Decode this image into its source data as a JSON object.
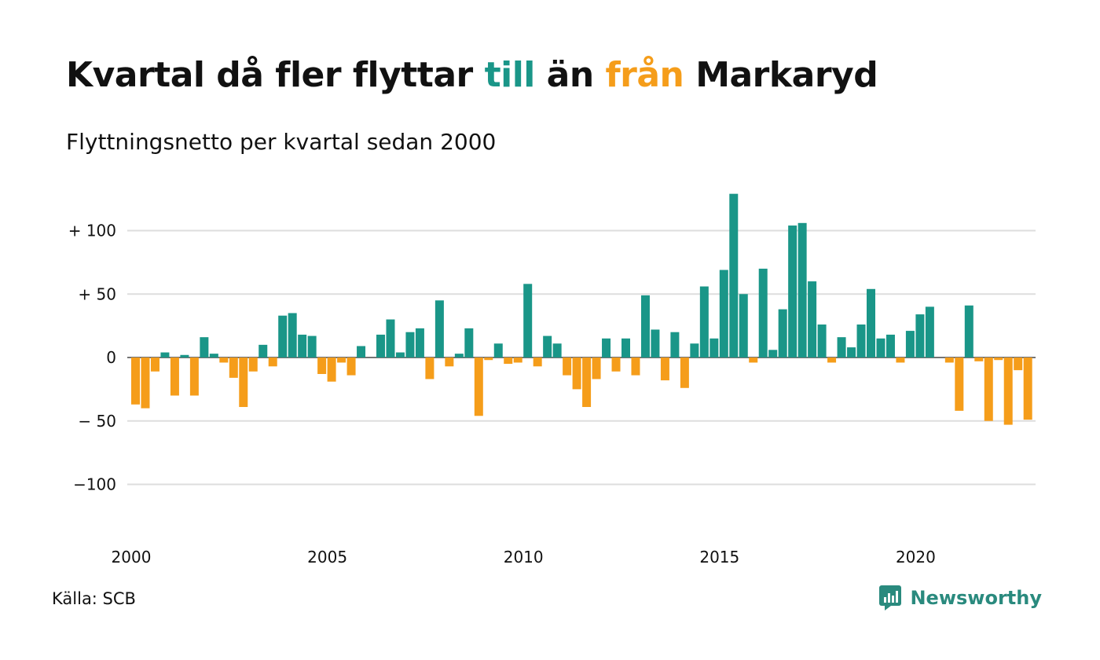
{
  "title": {
    "part1": "Kvartal då fler flyttar ",
    "till": "till",
    "part2": " än ",
    "fran": "från",
    "part3": " Markaryd"
  },
  "subtitle": "Flyttningsnetto per kvartal sedan 2000",
  "source": "Källa: SCB",
  "brand": {
    "name": "Newsworthy",
    "icon": "newsworthy-logo-icon"
  },
  "colors": {
    "positive": "#1a9688",
    "negative": "#f59d1a",
    "grid": "#dddddd",
    "brand": "#2a8a7e"
  },
  "chart_data": {
    "type": "bar",
    "title": "Kvartal då fler flyttar till än från Markaryd",
    "subtitle": "Flyttningsnetto per kvartal sedan 2000",
    "x_start": 2000,
    "periods_per_year": 4,
    "xticks": [
      {
        "year": 2000,
        "label": "2000"
      },
      {
        "year": 2005,
        "label": "2005"
      },
      {
        "year": 2010,
        "label": "2010"
      },
      {
        "year": 2015,
        "label": "2015"
      },
      {
        "year": 2020,
        "label": "2020"
      }
    ],
    "yticks": [
      {
        "value": 100,
        "label": "+ 100"
      },
      {
        "value": 50,
        "label": "+  50"
      },
      {
        "value": 0,
        "label": "0"
      },
      {
        "value": -50,
        "label": "− 50"
      },
      {
        "value": -100,
        "label": "−100"
      }
    ],
    "ylim": [
      -120,
      130
    ],
    "grid": true,
    "values": [
      -37,
      -40,
      -11,
      4,
      -30,
      2,
      -30,
      16,
      3,
      -4,
      -16,
      -39,
      -11,
      10,
      -7,
      33,
      35,
      18,
      17,
      -13,
      -19,
      -4,
      -14,
      9,
      0,
      18,
      30,
      4,
      20,
      23,
      -17,
      45,
      -7,
      3,
      23,
      -46,
      -2,
      11,
      -5,
      -4,
      58,
      -7,
      17,
      11,
      -14,
      -25,
      -39,
      -17,
      15,
      -11,
      15,
      -14,
      49,
      22,
      -18,
      20,
      -24,
      11,
      56,
      15,
      69,
      129,
      50,
      -4,
      70,
      6,
      38,
      104,
      106,
      60,
      26,
      -4,
      16,
      8,
      26,
      54,
      15,
      18,
      -4,
      21,
      34,
      40,
      0,
      -4,
      -42,
      41,
      -3,
      -50,
      -2,
      -53,
      -10,
      -49
    ]
  }
}
